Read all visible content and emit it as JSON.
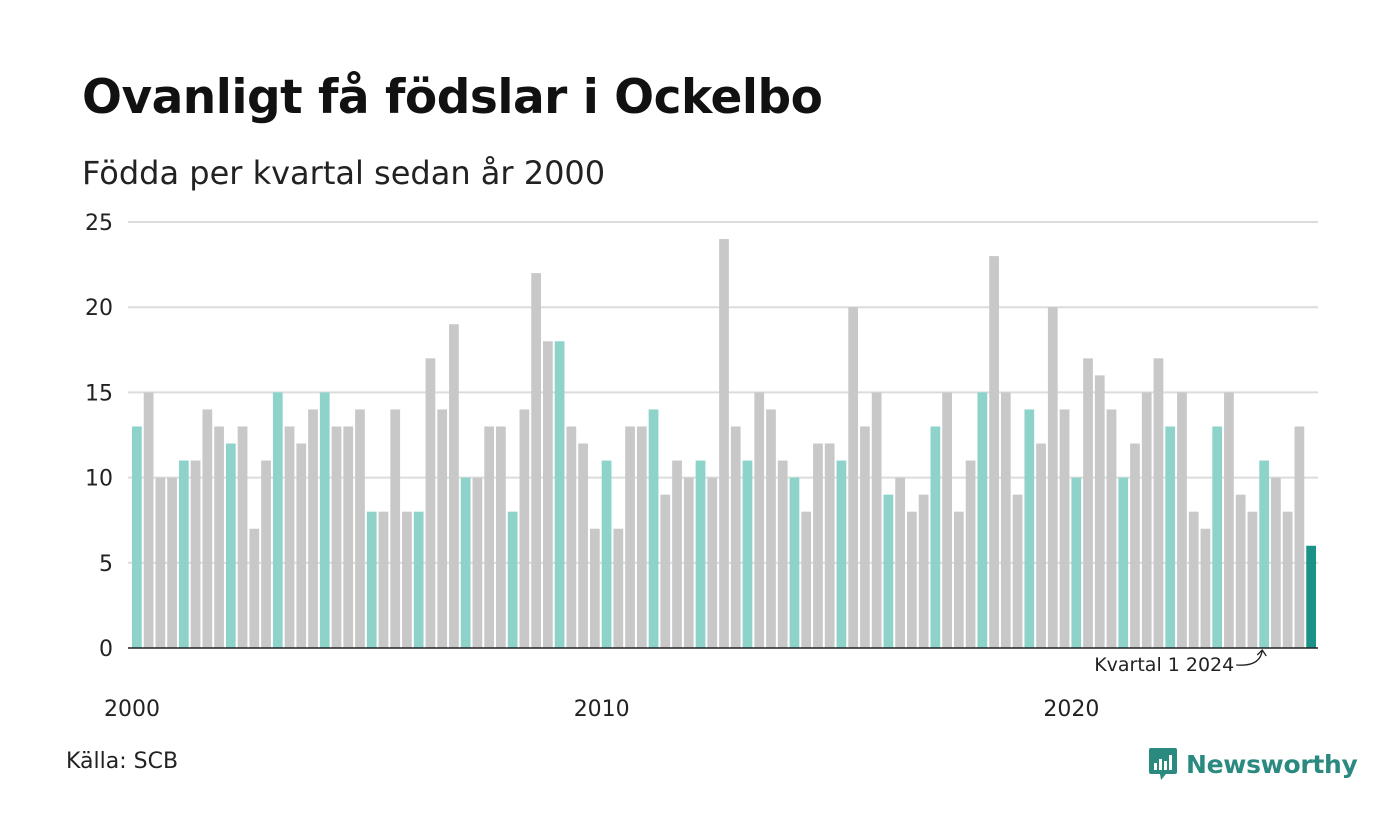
{
  "header": {
    "title": "Ovanligt få födslar i Ockelbo",
    "subtitle": "Födda per kvartal sedan år 2000"
  },
  "footer": {
    "source": "Källa: SCB",
    "brand": "Newsworthy"
  },
  "colors": {
    "q1": "#8dd3c9",
    "other": "#c8c8c8",
    "latest": "#1a9287",
    "grid": "#dcdcdc",
    "axis": "#222222",
    "brand": "#2b8a80"
  },
  "chart_data": {
    "type": "bar",
    "start_year": 2000,
    "ylim": [
      0,
      25
    ],
    "yticks": [
      0,
      5,
      10,
      15,
      20,
      25
    ],
    "xticks": [
      2000,
      2010,
      2020
    ],
    "grid": true,
    "annotation": "Kvartal 1 2024",
    "values": [
      13,
      15,
      10,
      10,
      11,
      11,
      14,
      13,
      12,
      13,
      7,
      11,
      15,
      13,
      12,
      14,
      15,
      13,
      13,
      14,
      8,
      8,
      14,
      8,
      8,
      17,
      14,
      19,
      10,
      10,
      13,
      13,
      8,
      14,
      22,
      18,
      18,
      13,
      12,
      7,
      11,
      7,
      13,
      13,
      14,
      9,
      11,
      10,
      11,
      10,
      24,
      13,
      11,
      15,
      14,
      11,
      10,
      8,
      12,
      12,
      11,
      20,
      13,
      15,
      9,
      10,
      8,
      9,
      13,
      15,
      8,
      11,
      15,
      23,
      15,
      9,
      14,
      12,
      20,
      14,
      10,
      17,
      16,
      14,
      10,
      12,
      15,
      17,
      13,
      15,
      8,
      7,
      13,
      15,
      9,
      8,
      11,
      10,
      8,
      13,
      6
    ]
  }
}
